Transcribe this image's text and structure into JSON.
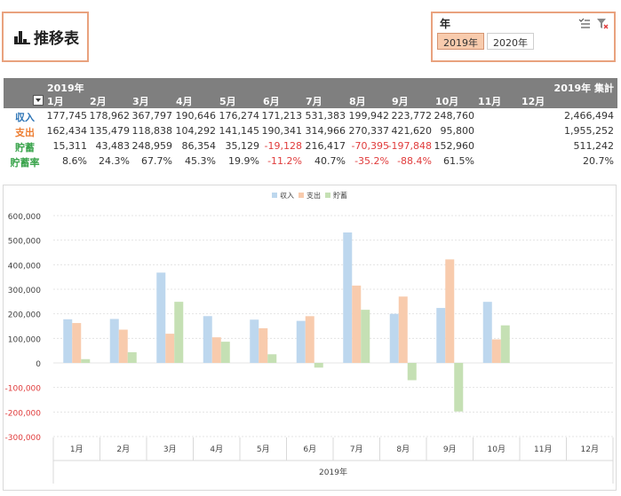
{
  "title": {
    "text": "推移表"
  },
  "slicer": {
    "title": "年",
    "items": [
      {
        "label": "2019年",
        "active": true
      },
      {
        "label": "2020年",
        "active": false
      }
    ]
  },
  "pivot": {
    "year_label": "2019年",
    "total_label": "2019年 集計",
    "months": [
      "1月",
      "2月",
      "3月",
      "4月",
      "5月",
      "6月",
      "7月",
      "8月",
      "9月",
      "10月",
      "11月",
      "12月"
    ],
    "rows": [
      {
        "label": "収入",
        "color": "#2e75b6",
        "cells": [
          "177,745",
          "178,962",
          "367,797",
          "190,646",
          "176,274",
          "171,213",
          "531,383",
          "199,942",
          "223,772",
          "248,760",
          "",
          ""
        ],
        "total": "2,466,494"
      },
      {
        "label": "支出",
        "color": "#ed7d31",
        "cells": [
          "162,434",
          "135,479",
          "118,838",
          "104,292",
          "141,145",
          "190,341",
          "314,966",
          "270,337",
          "421,620",
          "95,800",
          "",
          ""
        ],
        "total": "1,955,252"
      },
      {
        "label": "貯蓄",
        "color": "#38a34a",
        "cells": [
          "15,311",
          "43,483",
          "248,959",
          "86,354",
          "35,129",
          "-19,128",
          "216,417",
          "-70,395",
          "-197,848",
          "152,960",
          "",
          ""
        ],
        "total": "511,242"
      },
      {
        "label": "貯蓄率",
        "color": "#38a34a",
        "cells": [
          "8.6%",
          "24.3%",
          "67.7%",
          "45.3%",
          "19.9%",
          "-11.2%",
          "40.7%",
          "-35.2%",
          "-88.4%",
          "61.5%",
          "",
          ""
        ],
        "total": "20.7%"
      }
    ]
  },
  "chart_data": {
    "type": "bar",
    "categories": [
      "1月",
      "2月",
      "3月",
      "4月",
      "5月",
      "6月",
      "7月",
      "8月",
      "9月",
      "10月",
      "11月",
      "12月"
    ],
    "group_label": "2019年",
    "series": [
      {
        "name": "収入",
        "color": "#bdd7ee",
        "values": [
          177745,
          178962,
          367797,
          190646,
          176274,
          171213,
          531383,
          199942,
          223772,
          248760,
          null,
          null
        ]
      },
      {
        "name": "支出",
        "color": "#f8cbad",
        "values": [
          162434,
          135479,
          118838,
          104292,
          141145,
          190341,
          314966,
          270337,
          421620,
          95800,
          null,
          null
        ]
      },
      {
        "name": "貯蓄",
        "color": "#c5e0b4",
        "values": [
          15311,
          43483,
          248959,
          86354,
          35129,
          -19128,
          216417,
          -70395,
          -197848,
          152960,
          null,
          null
        ]
      }
    ],
    "ylim": [
      -300000,
      600000
    ],
    "yticks": [
      "600,000",
      "500,000",
      "400,000",
      "300,000",
      "200,000",
      "100,000",
      "0",
      "-100,000",
      "-200,000",
      "-300,000"
    ],
    "ytick_values": [
      600000,
      500000,
      400000,
      300000,
      200000,
      100000,
      0,
      -100000,
      -200000,
      -300000
    ],
    "negative_tick_color": "#e03c3c",
    "legend": "top",
    "grid": true
  }
}
